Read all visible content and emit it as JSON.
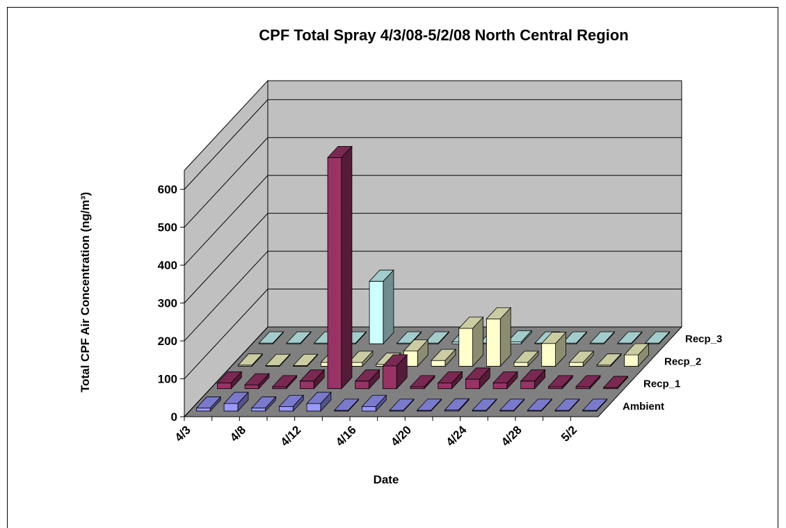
{
  "chart_data": {
    "type": "bar3d",
    "title": "CPF Total Spray 4/3/08-5/2/08 North Central Region",
    "x_label": "Date",
    "y_label": "Total CPF Air Concentration (ng/m³)",
    "categories": [
      "4/3",
      null,
      "4/8",
      null,
      "4/12",
      null,
      "4/16",
      null,
      "4/20",
      null,
      "4/24",
      null,
      "4/28",
      null,
      "5/2"
    ],
    "series": [
      {
        "name": "Ambient",
        "color": "#9999FF",
        "values": [
          8,
          20,
          8,
          12,
          20,
          2,
          12,
          2,
          2,
          3,
          2,
          2,
          2,
          2,
          2
        ]
      },
      {
        "name": "Recp_1",
        "color": "#993366",
        "values": [
          15,
          10,
          5,
          20,
          610,
          20,
          60,
          5,
          15,
          25,
          15,
          20,
          5,
          5,
          3
        ]
      },
      {
        "name": "Recp_2",
        "color": "#FFFFCC",
        "values": [
          3,
          2,
          2,
          10,
          10,
          5,
          40,
          15,
          100,
          125,
          10,
          60,
          10,
          3,
          30
        ]
      },
      {
        "name": "Recp_3",
        "color": "#CCFFFF",
        "values": [
          2,
          2,
          2,
          2,
          165,
          2,
          2,
          5,
          2,
          5,
          2,
          2,
          2,
          2,
          2
        ]
      }
    ],
    "ylim": [
      0,
      650
    ],
    "yticks": [
      0,
      100,
      200,
      300,
      400,
      500,
      600
    ],
    "grid": true
  }
}
